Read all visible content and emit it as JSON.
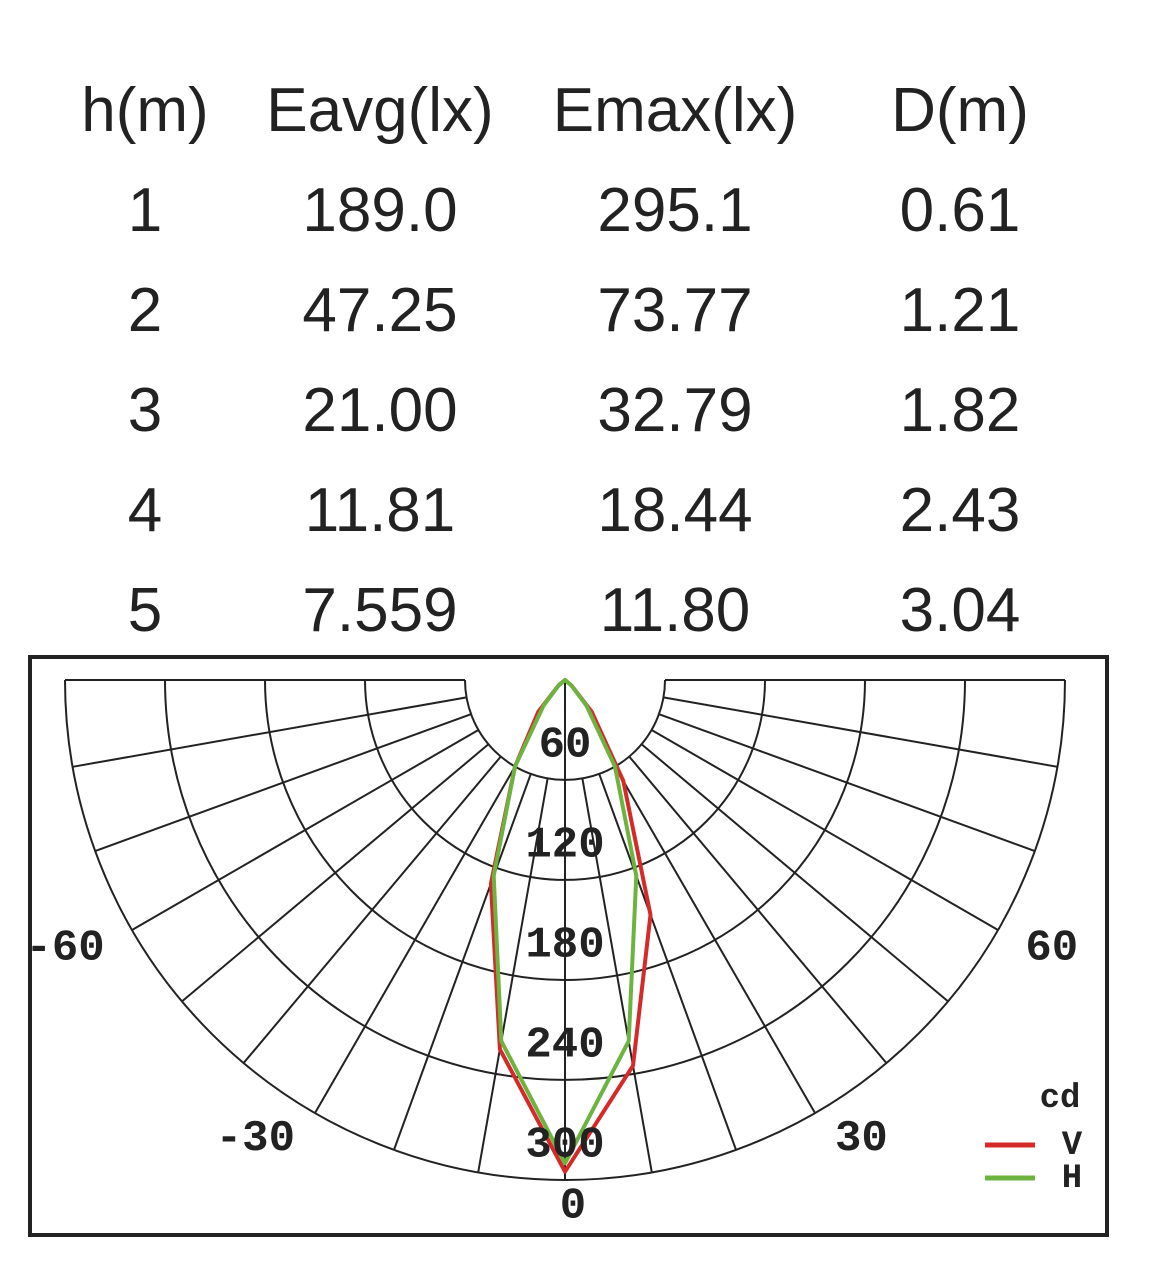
{
  "table": {
    "header": [
      "h(m)",
      "Eavg(lx)",
      "Emax(lx)",
      "D(m)"
    ],
    "rows": [
      [
        "1",
        "189.0",
        "295.1",
        "0.61"
      ],
      [
        "2",
        "47.25",
        "73.77",
        "1.21"
      ],
      [
        "3",
        "21.00",
        "32.79",
        "1.82"
      ],
      [
        "4",
        "11.81",
        "18.44",
        "2.43"
      ],
      [
        "5",
        "7.559",
        "11.80",
        "3.04"
      ]
    ]
  },
  "chart_data": {
    "type": "polar",
    "legend_title": "cd",
    "theta": [
      -60,
      -50,
      -40,
      -30,
      -20,
      -10,
      0,
      10,
      20,
      30,
      40,
      50,
      60
    ],
    "thetalim": [
      -90,
      90
    ],
    "thetaticks": [
      -60,
      -30,
      0,
      30,
      60
    ],
    "rlim": [
      0,
      300
    ],
    "rticks": [
      60,
      120,
      180,
      240,
      300
    ],
    "series": [
      {
        "name": "V",
        "color": "#d42a2a",
        "values": [
          0,
          5,
          25,
          60,
          130,
          225,
          295,
          235,
          150,
          70,
          25,
          5,
          0
        ]
      },
      {
        "name": "H",
        "color": "#6db33f",
        "values": [
          0,
          5,
          20,
          60,
          125,
          220,
          290,
          220,
          125,
          60,
          20,
          5,
          0
        ]
      }
    ]
  }
}
